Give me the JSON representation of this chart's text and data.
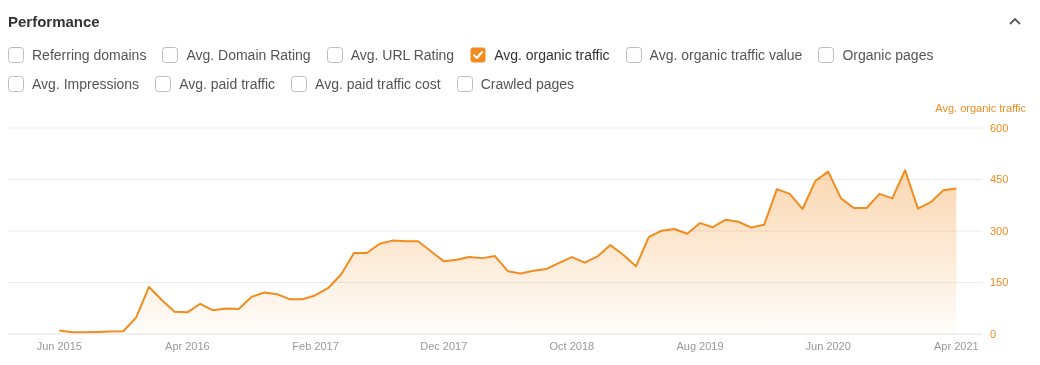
{
  "chart_data": {
    "type": "area",
    "title": "Performance",
    "ylabel": "Avg. organic traffic",
    "annotations": [
      "Referring domains",
      "Avg. Domain Rating",
      "Avg. URL Rating",
      "Avg. organic traffic value",
      "Organic pages",
      "Avg. Impressions",
      "Avg. paid traffic",
      "Avg. paid traffic cost",
      "Crawled pages"
    ],
    "x": [
      "2015-06",
      "2015-07",
      "2015-08",
      "2015-09",
      "2015-10",
      "2015-11",
      "2015-12",
      "2016-01",
      "2016-02",
      "2016-03",
      "2016-04",
      "2016-05",
      "2016-06",
      "2016-07",
      "2016-08",
      "2016-09",
      "2016-10",
      "2016-11",
      "2016-12",
      "2017-01",
      "2017-02",
      "2017-03",
      "2017-04",
      "2017-05",
      "2017-06",
      "2017-07",
      "2017-08",
      "2017-09",
      "2017-10",
      "2017-11",
      "2017-12",
      "2018-01",
      "2018-02",
      "2018-03",
      "2018-04",
      "2018-05",
      "2018-06",
      "2018-07",
      "2018-08",
      "2018-09",
      "2018-10",
      "2018-11",
      "2018-12",
      "2019-01",
      "2019-02",
      "2019-03",
      "2019-04",
      "2019-05",
      "2019-06",
      "2019-07",
      "2019-08",
      "2019-09",
      "2019-10",
      "2019-11",
      "2019-12",
      "2020-01",
      "2020-02",
      "2020-03",
      "2020-04",
      "2020-05",
      "2020-06",
      "2020-07",
      "2020-08",
      "2020-09",
      "2020-10",
      "2020-11",
      "2020-12",
      "2021-01",
      "2021-02",
      "2021-03",
      "2021-04"
    ],
    "series": [
      {
        "name": "Avg. organic traffic",
        "color": "#f28c1e",
        "values": [
          10,
          5,
          5,
          6,
          7,
          8,
          48,
          137,
          99,
          65,
          63,
          88,
          69,
          74,
          73,
          108,
          121,
          116,
          101,
          101,
          113,
          134,
          174,
          236,
          236,
          263,
          272,
          270,
          270,
          241,
          212,
          216,
          224,
          221,
          227,
          183,
          176,
          184,
          189,
          207,
          224,
          208,
          226,
          259,
          231,
          197,
          282,
          301,
          306,
          292,
          323,
          311,
          333,
          327,
          310,
          318,
          422,
          408,
          364,
          446,
          473,
          395,
          367,
          367,
          408,
          395,
          477,
          365,
          384,
          419,
          424
        ]
      }
    ],
    "xlim": [
      "2015-02",
      "2021-06"
    ],
    "xticks": [
      {
        "value": "2015-06",
        "label": "Jun 2015"
      },
      {
        "value": "2016-04",
        "label": "Apr 2016"
      },
      {
        "value": "2017-02",
        "label": "Feb 2017"
      },
      {
        "value": "2017-12",
        "label": "Dec 2017"
      },
      {
        "value": "2018-10",
        "label": "Oct 2018"
      },
      {
        "value": "2019-08",
        "label": "Aug 2019"
      },
      {
        "value": "2020-06",
        "label": "Jun 2020"
      },
      {
        "value": "2021-04",
        "label": "Apr 2021"
      }
    ],
    "ylim": [
      0,
      600
    ],
    "yticks": [
      0,
      150,
      300,
      450,
      600
    ],
    "grid": "y",
    "legend": "top left",
    "marker": "none",
    "line_style": "solid"
  }
}
